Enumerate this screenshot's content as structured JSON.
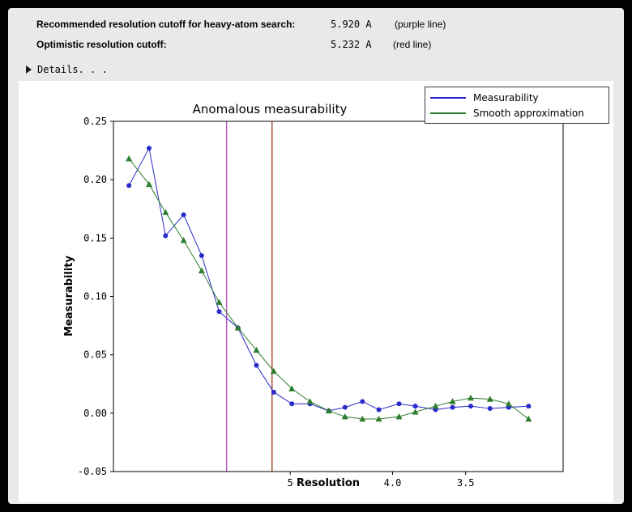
{
  "header": {
    "row1": {
      "label": "Recommended resolution cutoff for heavy-atom search:",
      "value": "5.920 A",
      "note": "(purple line)"
    },
    "row2": {
      "label": "Optimistic resolution cutoff:",
      "value": "5.232 A",
      "note": "(red line)"
    },
    "details_label": "Details. . ."
  },
  "chart_data": {
    "type": "line",
    "title": "Anomalous measurability",
    "xlabel": "Resolution",
    "ylabel": "Measurability",
    "x_scale": "inverse resolution (1/d), axis reversed high-to-low resolution",
    "xlim_resolution_A": [
      8.8,
      3.0
    ],
    "ylim": [
      -0.05,
      0.25
    ],
    "grid": false,
    "x_resolution_A": [
      8.25,
      7.63,
      7.19,
      6.76,
      6.38,
      6.05,
      5.73,
      5.45,
      5.21,
      4.98,
      4.77,
      4.57,
      4.41,
      4.25,
      4.11,
      3.95,
      3.83,
      3.69,
      3.58,
      3.47,
      3.36,
      3.26,
      3.16
    ],
    "series": [
      {
        "name": "Measurability",
        "color": "#2a2acc",
        "marker": "circle",
        "values": [
          0.195,
          0.227,
          0.152,
          0.17,
          0.135,
          0.087,
          0.073,
          0.041,
          0.018,
          0.008,
          0.008,
          0.002,
          0.005,
          0.01,
          0.003,
          0.008,
          0.006,
          0.003,
          0.005,
          0.006,
          0.004,
          0.005,
          0.006
        ]
      },
      {
        "name": "Smooth approximation",
        "color": "#2e7d2e",
        "marker": "triangle",
        "values": [
          0.218,
          0.196,
          0.172,
          0.148,
          0.122,
          0.095,
          0.073,
          0.054,
          0.036,
          0.021,
          0.01,
          0.002,
          -0.003,
          -0.005,
          -0.005,
          -0.003,
          0.001,
          0.006,
          0.01,
          0.013,
          0.012,
          0.008,
          -0.005
        ]
      }
    ],
    "vlines": [
      {
        "name": "purple-line",
        "resolution_A": 5.92,
        "color": "#b84ab8",
        "meaning": "Recommended resolution cutoff for heavy-atom search"
      },
      {
        "name": "red-line",
        "resolution_A": 5.232,
        "color": "#993322",
        "meaning": "Optimistic resolution cutoff"
      }
    ],
    "x_ticks": [
      {
        "resolution_A": 5.0,
        "label": "5"
      },
      {
        "resolution_A": 4.0,
        "label": "4.0"
      },
      {
        "resolution_A": 3.5,
        "label": "3.5"
      }
    ],
    "y_ticks": [
      {
        "value": 0.25,
        "label": "0.25"
      },
      {
        "value": 0.2,
        "label": "0.20"
      },
      {
        "value": 0.15,
        "label": "0.15"
      },
      {
        "value": 0.1,
        "label": "0.10"
      },
      {
        "value": 0.05,
        "label": "0.05"
      },
      {
        "value": 0.0,
        "label": "0.00"
      },
      {
        "value": -0.05,
        "label": "-0.05"
      }
    ],
    "legend": {
      "position": "top-right"
    }
  }
}
